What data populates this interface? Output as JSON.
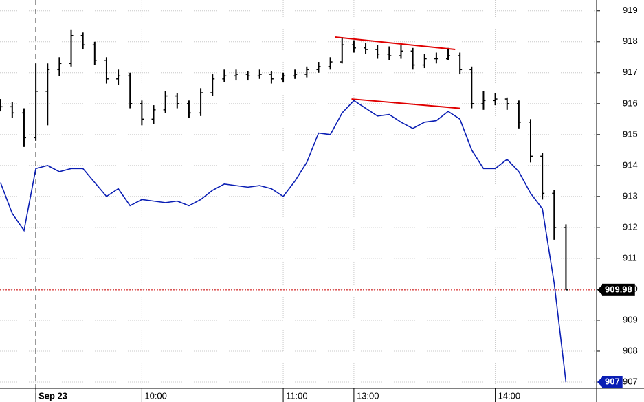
{
  "chart_data": {
    "type": "ohlc",
    "x": [
      -15,
      -10,
      -5,
      0,
      5,
      10,
      15,
      20,
      25,
      30,
      35,
      40,
      45,
      50,
      55,
      60,
      65,
      70,
      75,
      80,
      85,
      90,
      95,
      100,
      105,
      110,
      115,
      120,
      125,
      130,
      135,
      140,
      145,
      150,
      155,
      160,
      165,
      170,
      175,
      180,
      185,
      190,
      195,
      200,
      205,
      210,
      215,
      220,
      225
    ],
    "series": [
      {
        "type": "ohlc",
        "color": "#000000",
        "open": [
          916.0,
          915.9,
          915.7,
          914.9,
          916.4,
          917.1,
          917.3,
          918.2,
          917.9,
          917.4,
          916.8,
          916.9,
          916.0,
          915.5,
          915.8,
          916.25,
          916.0,
          915.7,
          916.35,
          916.8,
          916.9,
          916.95,
          916.9,
          916.95,
          916.8,
          916.9,
          916.95,
          917.1,
          917.2,
          917.35,
          917.9,
          917.8,
          917.75,
          917.6,
          917.55,
          917.7,
          917.25,
          917.45,
          917.45,
          917.55,
          917.1,
          916.0,
          916.1,
          916.15,
          916.0,
          915.4,
          914.3,
          913.1,
          912.0
        ],
        "high": [
          916.15,
          916.05,
          915.85,
          917.3,
          917.3,
          917.5,
          918.4,
          918.3,
          918.0,
          917.5,
          917.1,
          917.0,
          916.1,
          915.95,
          916.4,
          916.35,
          916.1,
          916.5,
          916.95,
          917.1,
          917.1,
          917.05,
          917.1,
          917.05,
          917.0,
          917.1,
          917.2,
          917.35,
          917.5,
          918.15,
          918.05,
          917.95,
          917.9,
          917.85,
          917.9,
          917.8,
          917.6,
          917.65,
          917.8,
          917.65,
          917.2,
          916.4,
          916.35,
          916.2,
          916.1,
          915.5,
          914.4,
          913.2,
          912.1
        ],
        "low": [
          915.75,
          915.55,
          914.6,
          914.8,
          915.3,
          916.9,
          917.2,
          917.75,
          917.25,
          916.65,
          916.6,
          915.85,
          915.3,
          915.35,
          915.7,
          915.85,
          915.55,
          915.6,
          916.25,
          916.7,
          916.75,
          916.75,
          916.8,
          916.65,
          916.7,
          916.8,
          916.85,
          917.0,
          917.1,
          917.3,
          917.65,
          917.6,
          917.45,
          917.4,
          917.45,
          917.1,
          917.15,
          917.3,
          917.4,
          916.95,
          915.85,
          915.8,
          915.95,
          915.8,
          915.2,
          914.1,
          912.9,
          911.6,
          909.98
        ],
        "close": [
          915.9,
          915.7,
          914.9,
          916.4,
          917.1,
          917.3,
          918.2,
          917.9,
          917.4,
          916.8,
          916.9,
          916.0,
          915.5,
          915.8,
          916.25,
          916.0,
          915.7,
          916.35,
          916.8,
          916.9,
          916.95,
          916.9,
          916.95,
          916.8,
          916.9,
          916.95,
          917.1,
          917.2,
          917.35,
          917.9,
          917.8,
          917.75,
          917.6,
          917.55,
          917.7,
          917.25,
          917.45,
          917.45,
          917.55,
          917.1,
          916.0,
          916.1,
          916.15,
          916.0,
          915.4,
          914.3,
          913.1,
          912.0,
          909.98
        ]
      },
      {
        "type": "line",
        "color": "#0a1eb4",
        "values": [
          913.45,
          912.45,
          911.9,
          913.9,
          914.0,
          913.8,
          913.9,
          913.9,
          913.45,
          913.0,
          913.25,
          912.7,
          912.9,
          912.85,
          912.8,
          912.85,
          912.7,
          912.9,
          913.2,
          913.4,
          913.35,
          913.3,
          913.35,
          913.25,
          913.0,
          913.5,
          914.1,
          915.05,
          915.0,
          915.7,
          916.1,
          915.85,
          915.6,
          915.65,
          915.4,
          915.2,
          915.4,
          915.45,
          915.75,
          915.5,
          914.5,
          913.9,
          913.9,
          914.2,
          913.8,
          913.1,
          912.6,
          910.2,
          907
        ]
      }
    ],
    "trendlines": [
      {
        "x": [
          127,
          178
        ],
        "y": [
          918.15,
          917.75
        ],
        "color": "#e00000"
      },
      {
        "x": [
          134,
          180
        ],
        "y": [
          916.15,
          915.85
        ],
        "color": "#e00000"
      }
    ],
    "xlim": [
      -15.2,
      238
    ],
    "xticks": [
      {
        "value": 0,
        "label": "Sep 23"
      },
      {
        "value": 45,
        "label": "10:00"
      },
      {
        "value": 105,
        "label": "11:00"
      },
      {
        "value": 135,
        "label": "13:00"
      },
      {
        "value": 195,
        "label": "14:00"
      }
    ],
    "ylim": [
      906.8,
      919.35
    ],
    "yticks": [
      907,
      908,
      909,
      910,
      911,
      912,
      913,
      914,
      915,
      916,
      917,
      918,
      919
    ],
    "grid": true
  }
}
